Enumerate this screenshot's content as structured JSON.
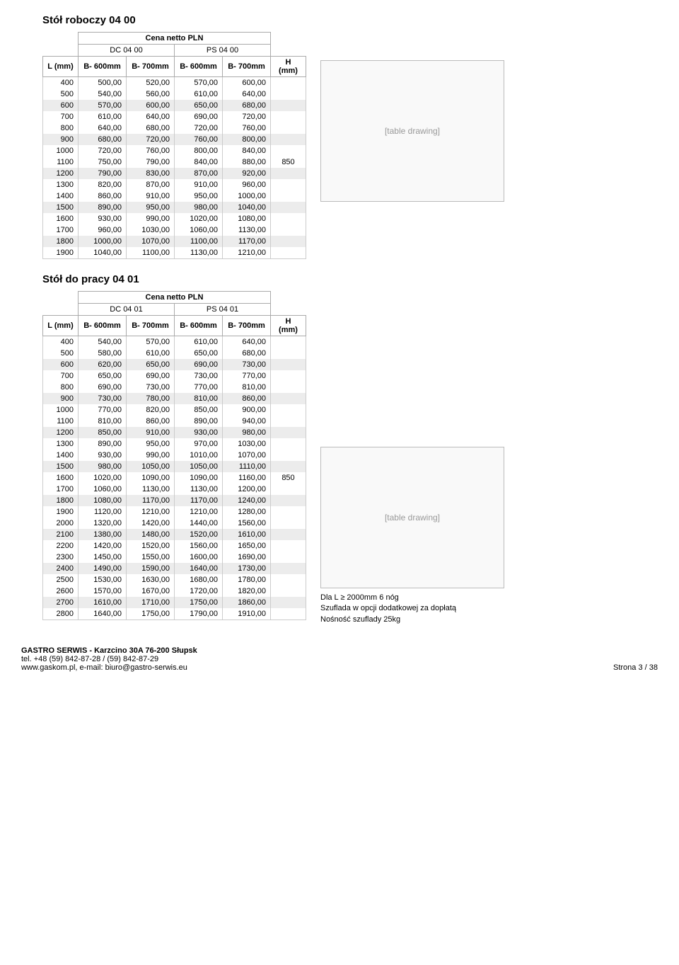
{
  "section1": {
    "title": "Stół roboczy 04 00",
    "priceHeader": "Cena netto PLN",
    "group1": "DC 04 00",
    "group2": "PS 04 00",
    "colL": "L (mm)",
    "colB1": "B- 600mm",
    "colB2": "B- 700mm",
    "colB3": "B- 600mm",
    "colB4": "B- 700mm",
    "colH": "H (mm)",
    "hValue": "850",
    "rows": [
      {
        "l": "400",
        "a": "500,00",
        "b": "520,00",
        "c": "570,00",
        "d": "600,00"
      },
      {
        "l": "500",
        "a": "540,00",
        "b": "560,00",
        "c": "610,00",
        "d": "640,00"
      },
      {
        "l": "600",
        "a": "570,00",
        "b": "600,00",
        "c": "650,00",
        "d": "680,00"
      },
      {
        "l": "700",
        "a": "610,00",
        "b": "640,00",
        "c": "690,00",
        "d": "720,00"
      },
      {
        "l": "800",
        "a": "640,00",
        "b": "680,00",
        "c": "720,00",
        "d": "760,00"
      },
      {
        "l": "900",
        "a": "680,00",
        "b": "720,00",
        "c": "760,00",
        "d": "800,00"
      },
      {
        "l": "1000",
        "a": "720,00",
        "b": "760,00",
        "c": "800,00",
        "d": "840,00"
      },
      {
        "l": "1100",
        "a": "750,00",
        "b": "790,00",
        "c": "840,00",
        "d": "880,00"
      },
      {
        "l": "1200",
        "a": "790,00",
        "b": "830,00",
        "c": "870,00",
        "d": "920,00"
      },
      {
        "l": "1300",
        "a": "820,00",
        "b": "870,00",
        "c": "910,00",
        "d": "960,00"
      },
      {
        "l": "1400",
        "a": "860,00",
        "b": "910,00",
        "c": "950,00",
        "d": "1000,00"
      },
      {
        "l": "1500",
        "a": "890,00",
        "b": "950,00",
        "c": "980,00",
        "d": "1040,00"
      },
      {
        "l": "1600",
        "a": "930,00",
        "b": "990,00",
        "c": "1020,00",
        "d": "1080,00"
      },
      {
        "l": "1700",
        "a": "960,00",
        "b": "1030,00",
        "c": "1060,00",
        "d": "1130,00"
      },
      {
        "l": "1800",
        "a": "1000,00",
        "b": "1070,00",
        "c": "1100,00",
        "d": "1170,00"
      },
      {
        "l": "1900",
        "a": "1040,00",
        "b": "1100,00",
        "c": "1130,00",
        "d": "1210,00"
      }
    ],
    "hRowIndex": 7,
    "imgLabel": "[table drawing]"
  },
  "section2": {
    "title": "Stół do pracy 04 01",
    "priceHeader": "Cena netto PLN",
    "group1": "DC 04 01",
    "group2": "PS 04 01",
    "colL": "L (mm)",
    "colB1": "B- 600mm",
    "colB2": "B- 700mm",
    "colB3": "B- 600mm",
    "colB4": "B- 700mm",
    "colH": "H (mm)",
    "hValue": "850",
    "rows": [
      {
        "l": "400",
        "a": "540,00",
        "b": "570,00",
        "c": "610,00",
        "d": "640,00"
      },
      {
        "l": "500",
        "a": "580,00",
        "b": "610,00",
        "c": "650,00",
        "d": "680,00"
      },
      {
        "l": "600",
        "a": "620,00",
        "b": "650,00",
        "c": "690,00",
        "d": "730,00"
      },
      {
        "l": "700",
        "a": "650,00",
        "b": "690,00",
        "c": "730,00",
        "d": "770,00"
      },
      {
        "l": "800",
        "a": "690,00",
        "b": "730,00",
        "c": "770,00",
        "d": "810,00"
      },
      {
        "l": "900",
        "a": "730,00",
        "b": "780,00",
        "c": "810,00",
        "d": "860,00"
      },
      {
        "l": "1000",
        "a": "770,00",
        "b": "820,00",
        "c": "850,00",
        "d": "900,00"
      },
      {
        "l": "1100",
        "a": "810,00",
        "b": "860,00",
        "c": "890,00",
        "d": "940,00"
      },
      {
        "l": "1200",
        "a": "850,00",
        "b": "910,00",
        "c": "930,00",
        "d": "980,00"
      },
      {
        "l": "1300",
        "a": "890,00",
        "b": "950,00",
        "c": "970,00",
        "d": "1030,00"
      },
      {
        "l": "1400",
        "a": "930,00",
        "b": "990,00",
        "c": "1010,00",
        "d": "1070,00"
      },
      {
        "l": "1500",
        "a": "980,00",
        "b": "1050,00",
        "c": "1050,00",
        "d": "1110,00"
      },
      {
        "l": "1600",
        "a": "1020,00",
        "b": "1090,00",
        "c": "1090,00",
        "d": "1160,00"
      },
      {
        "l": "1700",
        "a": "1060,00",
        "b": "1130,00",
        "c": "1130,00",
        "d": "1200,00"
      },
      {
        "l": "1800",
        "a": "1080,00",
        "b": "1170,00",
        "c": "1170,00",
        "d": "1240,00"
      },
      {
        "l": "1900",
        "a": "1120,00",
        "b": "1210,00",
        "c": "1210,00",
        "d": "1280,00"
      },
      {
        "l": "2000",
        "a": "1320,00",
        "b": "1420,00",
        "c": "1440,00",
        "d": "1560,00"
      },
      {
        "l": "2100",
        "a": "1380,00",
        "b": "1480,00",
        "c": "1520,00",
        "d": "1610,00"
      },
      {
        "l": "2200",
        "a": "1420,00",
        "b": "1520,00",
        "c": "1560,00",
        "d": "1650,00"
      },
      {
        "l": "2300",
        "a": "1450,00",
        "b": "1550,00",
        "c": "1600,00",
        "d": "1690,00"
      },
      {
        "l": "2400",
        "a": "1490,00",
        "b": "1590,00",
        "c": "1640,00",
        "d": "1730,00"
      },
      {
        "l": "2500",
        "a": "1530,00",
        "b": "1630,00",
        "c": "1680,00",
        "d": "1780,00"
      },
      {
        "l": "2600",
        "a": "1570,00",
        "b": "1670,00",
        "c": "1720,00",
        "d": "1820,00"
      },
      {
        "l": "2700",
        "a": "1610,00",
        "b": "1710,00",
        "c": "1750,00",
        "d": "1860,00"
      },
      {
        "l": "2800",
        "a": "1640,00",
        "b": "1750,00",
        "c": "1790,00",
        "d": "1910,00"
      }
    ],
    "hRowIndex": 12,
    "imgLabel": "[table drawing]",
    "notes": [
      "Dla L ≥ 2000mm 6 nóg",
      "Szuflada w opcji dodatkowej za dopłatą",
      "Nośność szuflady 25kg"
    ]
  },
  "footer": {
    "line1": "GASTRO SERWIS - Karzcino 30A 76-200 Słupsk",
    "line2": "tel. +48 (59) 842-87-28  /  (59) 842-87-29",
    "line3": "www.gaskom.pl, e-mail: biuro@gastro-serwis.eu",
    "page": "Strona 3 / 38"
  },
  "colors": {
    "altRow": "#ececec",
    "border": "#cccccc"
  }
}
